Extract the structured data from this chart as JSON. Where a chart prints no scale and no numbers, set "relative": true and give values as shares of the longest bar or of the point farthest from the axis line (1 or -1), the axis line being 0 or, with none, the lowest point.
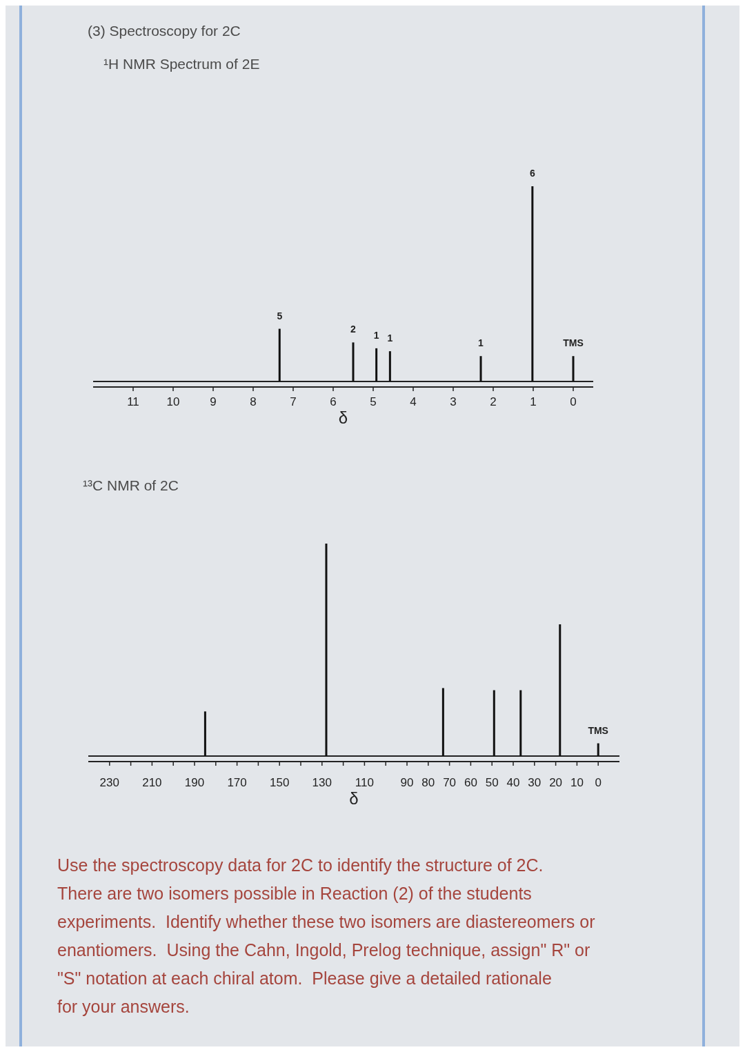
{
  "chart_data": [
    {
      "type": "bar",
      "title": "(3) Spectroscopy for 2C",
      "subtitle": "¹H NMR Spectrum of 2E",
      "xlabel": "δ",
      "relative": true,
      "color": "#111111",
      "x": [
        7.34,
        5.5,
        4.92,
        4.58,
        2.31,
        1.02,
        0
      ],
      "values": [
        0.27,
        0.2,
        0.17,
        0.155,
        0.13,
        1,
        0.13
      ],
      "xlim": [
        12,
        -0.5
      ],
      "xticks": [
        11,
        10,
        9,
        8,
        7,
        6,
        5,
        4,
        3,
        2,
        1,
        0
      ],
      "annotations": [
        {
          "text": "5",
          "x": 7.34,
          "y": 0.27
        },
        {
          "text": "2",
          "x": 5.5,
          "y": 0.2
        },
        {
          "text": "1",
          "x": 4.92,
          "y": 0.17
        },
        {
          "text": "1",
          "x": 4.58,
          "y": 0.155
        },
        {
          "text": "1",
          "x": 2.31,
          "y": 0.13
        },
        {
          "text": "6",
          "x": 1.02,
          "y": 1
        },
        {
          "text": "TMS",
          "x": 0,
          "y": 0.13
        }
      ]
    },
    {
      "type": "bar",
      "title": "¹³C NMR of 2C",
      "xlabel": "δ",
      "relative": true,
      "color": "#111111",
      "x": [
        185,
        128,
        73,
        49,
        36.5,
        18,
        0
      ],
      "values": [
        0.21,
        1,
        0.32,
        0.31,
        0.31,
        0.62,
        0.06
      ],
      "xlim": [
        240,
        -10
      ],
      "xticks": [
        230,
        {
          "value": 220,
          "label": null
        },
        210,
        {
          "value": 200,
          "label": null
        },
        190,
        {
          "value": 180,
          "label": null
        },
        170,
        {
          "value": 160,
          "label": null
        },
        150,
        {
          "value": 140,
          "label": null
        },
        130,
        {
          "value": 120,
          "label": null
        },
        110,
        {
          "value": 100,
          "label": null
        },
        90,
        80,
        70,
        60,
        50,
        40,
        30,
        20,
        10,
        0
      ],
      "annotations": [
        {
          "text": "TMS",
          "x": 0,
          "y": 0.06
        }
      ]
    },
    {
      "type": "other",
      "annotations": [
        "Use the spectroscopy data for 2C to identify the structure of 2C. There are two isomers possible in Reaction (2) of the students experiments.  Identify whether these two isomers are diastereomers or enantiomers.  Using the Cahn, Ingold, Prelog technique, assign\" R\" or \"S\" notation at each chiral atom.  Please give a detailed rationale for your answers."
      ]
    }
  ]
}
